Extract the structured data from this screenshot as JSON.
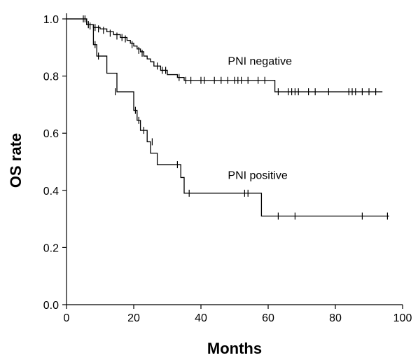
{
  "chart_data": {
    "type": "line",
    "title": "",
    "xlabel": "Months",
    "ylabel": "OS rate",
    "xlim": [
      0,
      100
    ],
    "ylim": [
      0,
      1.0
    ],
    "x_ticks": [
      0,
      20,
      40,
      60,
      80,
      100
    ],
    "x_tick_labels": [
      "0",
      "20",
      "40",
      "60",
      "80",
      "100"
    ],
    "y_ticks": [
      0.0,
      0.2,
      0.4,
      0.6,
      0.8,
      1.0
    ],
    "y_tick_labels": [
      "0.0",
      "0.2",
      "0.4",
      "0.6",
      "0.8",
      "1.0"
    ],
    "grid": false,
    "legend": "none",
    "line_color": "#000000",
    "series": [
      {
        "name": "PNI negative",
        "step_points": [
          [
            0,
            1.0
          ],
          [
            5,
            1.0
          ],
          [
            6,
            0.98
          ],
          [
            8,
            0.97
          ],
          [
            10,
            0.965
          ],
          [
            12,
            0.955
          ],
          [
            14,
            0.945
          ],
          [
            16,
            0.935
          ],
          [
            18,
            0.925
          ],
          [
            19,
            0.915
          ],
          [
            20,
            0.905
          ],
          [
            21,
            0.895
          ],
          [
            22,
            0.885
          ],
          [
            23,
            0.87
          ],
          [
            24,
            0.86
          ],
          [
            25,
            0.85
          ],
          [
            26,
            0.835
          ],
          [
            28,
            0.82
          ],
          [
            30,
            0.805
          ],
          [
            33,
            0.795
          ],
          [
            35,
            0.785
          ],
          [
            62,
            0.745
          ],
          [
            94,
            0.745
          ]
        ],
        "censor_marks": [
          [
            5,
            1.0
          ],
          [
            5.5,
            1.0
          ],
          [
            6.5,
            0.98
          ],
          [
            7,
            0.975
          ],
          [
            8.5,
            0.97
          ],
          [
            9.5,
            0.965
          ],
          [
            11,
            0.96
          ],
          [
            13,
            0.95
          ],
          [
            15,
            0.94
          ],
          [
            16.5,
            0.935
          ],
          [
            17.5,
            0.93
          ],
          [
            19.5,
            0.91
          ],
          [
            21.5,
            0.89
          ],
          [
            22.5,
            0.88
          ],
          [
            27,
            0.835
          ],
          [
            28.5,
            0.82
          ],
          [
            29.5,
            0.82
          ],
          [
            33.5,
            0.795
          ],
          [
            35.5,
            0.785
          ],
          [
            37,
            0.785
          ],
          [
            40,
            0.785
          ],
          [
            41,
            0.785
          ],
          [
            44,
            0.785
          ],
          [
            46,
            0.785
          ],
          [
            48,
            0.785
          ],
          [
            50,
            0.785
          ],
          [
            51,
            0.785
          ],
          [
            52,
            0.785
          ],
          [
            54,
            0.785
          ],
          [
            57,
            0.785
          ],
          [
            59,
            0.785
          ],
          [
            63,
            0.745
          ],
          [
            66,
            0.745
          ],
          [
            67,
            0.745
          ],
          [
            68,
            0.745
          ],
          [
            69,
            0.745
          ],
          [
            72,
            0.745
          ],
          [
            74,
            0.745
          ],
          [
            78,
            0.745
          ],
          [
            84,
            0.745
          ],
          [
            85,
            0.745
          ],
          [
            86,
            0.745
          ],
          [
            88,
            0.745
          ],
          [
            90,
            0.745
          ],
          [
            92,
            0.745
          ]
        ]
      },
      {
        "name": "PNI positive",
        "step_points": [
          [
            0,
            1.0
          ],
          [
            5,
            1.0
          ],
          [
            6,
            0.98
          ],
          [
            8,
            0.91
          ],
          [
            9,
            0.87
          ],
          [
            12,
            0.81
          ],
          [
            15,
            0.745
          ],
          [
            20,
            0.68
          ],
          [
            21,
            0.645
          ],
          [
            22,
            0.61
          ],
          [
            24,
            0.57
          ],
          [
            25,
            0.53
          ],
          [
            27,
            0.49
          ],
          [
            34,
            0.445
          ],
          [
            35,
            0.39
          ],
          [
            58,
            0.31
          ],
          [
            96,
            0.31
          ]
        ],
        "censor_marks": [
          [
            6.5,
            0.98
          ],
          [
            8.5,
            0.91
          ],
          [
            9.5,
            0.87
          ],
          [
            14.5,
            0.745
          ],
          [
            20.5,
            0.68
          ],
          [
            21.5,
            0.645
          ],
          [
            23,
            0.61
          ],
          [
            25.5,
            0.57
          ],
          [
            33,
            0.49
          ],
          [
            36.5,
            0.39
          ],
          [
            53,
            0.39
          ],
          [
            54,
            0.39
          ],
          [
            63,
            0.31
          ],
          [
            68,
            0.31
          ],
          [
            88,
            0.31
          ],
          [
            95.5,
            0.31
          ]
        ]
      }
    ],
    "annotations": [
      {
        "text": "PNI negative",
        "x": 48,
        "y": 0.84
      },
      {
        "text": "PNI positive",
        "x": 48,
        "y": 0.44
      }
    ]
  }
}
